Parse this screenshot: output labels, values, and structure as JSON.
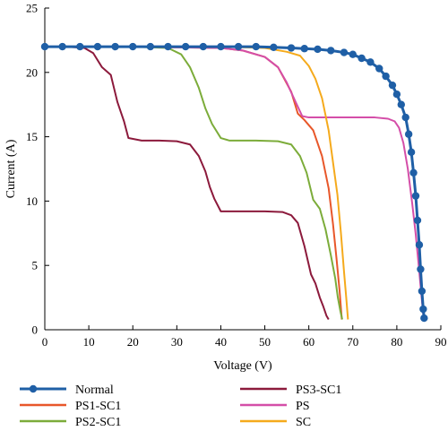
{
  "chart_data": {
    "type": "line",
    "xlabel": "Voltage (V)",
    "ylabel": "Current (A)",
    "xlim": [
      0,
      90
    ],
    "ylim": [
      0,
      25
    ],
    "xticks": [
      0,
      10,
      20,
      30,
      40,
      50,
      60,
      70,
      80,
      90
    ],
    "yticks": [
      0,
      5,
      10,
      15,
      20,
      25
    ],
    "grid": false,
    "legend_position": "bottom",
    "series": [
      {
        "name": "Normal",
        "color": "#1f5fa6",
        "marker": "circle",
        "x": [
          0,
          4,
          8,
          12,
          16,
          20,
          24,
          28,
          32,
          36,
          40,
          44,
          48,
          52,
          56,
          59,
          62,
          65,
          68,
          70,
          72,
          74,
          76,
          77.5,
          79,
          80,
          81,
          82,
          82.7,
          83.3,
          83.8,
          84.3,
          84.7,
          85.1,
          85.4,
          85.7,
          86,
          86.2
        ],
        "y": [
          22,
          22,
          22,
          22,
          22,
          22,
          22,
          22,
          22,
          22,
          22,
          22,
          22,
          21.95,
          21.9,
          21.85,
          21.8,
          21.7,
          21.55,
          21.4,
          21.1,
          20.8,
          20.3,
          19.7,
          19,
          18.3,
          17.5,
          16.5,
          15.2,
          13.8,
          12.2,
          10.4,
          8.5,
          6.6,
          4.7,
          3,
          1.6,
          0.9
        ]
      },
      {
        "name": "PS1-SC1",
        "color": "#e8572a",
        "x": [
          0,
          20,
          40,
          45,
          50,
          53,
          56,
          57.5,
          59,
          61,
          63,
          64.5,
          65.5,
          66.3,
          67,
          67.5
        ],
        "y": [
          22,
          22,
          21.9,
          21.7,
          21.2,
          20.4,
          18.5,
          16.8,
          16.3,
          15.5,
          13.5,
          11,
          8.2,
          5.5,
          3,
          0.8
        ]
      },
      {
        "name": "PS2-SC1",
        "color": "#7cac3a",
        "x": [
          0,
          20,
          28,
          31,
          33,
          35,
          36.5,
          38,
          40,
          42,
          48,
          53,
          56,
          58,
          59.5,
          61,
          62.5,
          63.8,
          65,
          66,
          66.6,
          67.2,
          67.6
        ],
        "y": [
          22,
          22,
          21.9,
          21.4,
          20.4,
          18.8,
          17.2,
          16,
          14.9,
          14.7,
          14.7,
          14.65,
          14.4,
          13.5,
          12.2,
          10.1,
          9.4,
          7.8,
          5.8,
          4,
          2.5,
          1.4,
          0.8
        ]
      },
      {
        "name": "PS3-SC1",
        "color": "#8c1a3c",
        "x": [
          0,
          5,
          9,
          11,
          13,
          15,
          16.5,
          18,
          19,
          22,
          26,
          30,
          33,
          35,
          36.5,
          37.5,
          38.5,
          40,
          44,
          50,
          54,
          56,
          57.5,
          59,
          60.5,
          61.5,
          62.5,
          63.3,
          64,
          64.5
        ],
        "y": [
          22,
          22,
          21.9,
          21.5,
          20.4,
          19.8,
          17.7,
          16.2,
          14.9,
          14.7,
          14.7,
          14.65,
          14.4,
          13.5,
          12.3,
          11.1,
          10.2,
          9.2,
          9.2,
          9.2,
          9.15,
          8.9,
          8.3,
          6.5,
          4.3,
          3.6,
          2.5,
          1.8,
          1.1,
          0.8
        ]
      },
      {
        "name": "PS",
        "color": "#d44ea8",
        "x": [
          0,
          20,
          40,
          45,
          50,
          53,
          55,
          57,
          58.5,
          60,
          65,
          70,
          75,
          78,
          79.5,
          80.5,
          81.5,
          82.5,
          83.5,
          84.3,
          85,
          85.5,
          86
        ],
        "y": [
          22,
          22,
          21.9,
          21.7,
          21.2,
          20.4,
          19.2,
          17.7,
          16.6,
          16.5,
          16.5,
          16.5,
          16.5,
          16.4,
          16.2,
          15.7,
          14.5,
          12.5,
          9.8,
          7.4,
          4.9,
          3,
          1.2
        ]
      },
      {
        "name": "SC",
        "color": "#f5aa1c",
        "x": [
          0,
          20,
          40,
          45,
          50,
          55,
          58,
          60,
          61.5,
          63,
          64.5,
          65.5,
          66.5,
          67.3,
          68,
          68.5,
          68.9
        ],
        "y": [
          22,
          22,
          22,
          21.95,
          21.9,
          21.6,
          21.3,
          20.5,
          19.5,
          18,
          15.5,
          13,
          10.5,
          7.5,
          4.5,
          2.5,
          0.8
        ]
      }
    ]
  }
}
